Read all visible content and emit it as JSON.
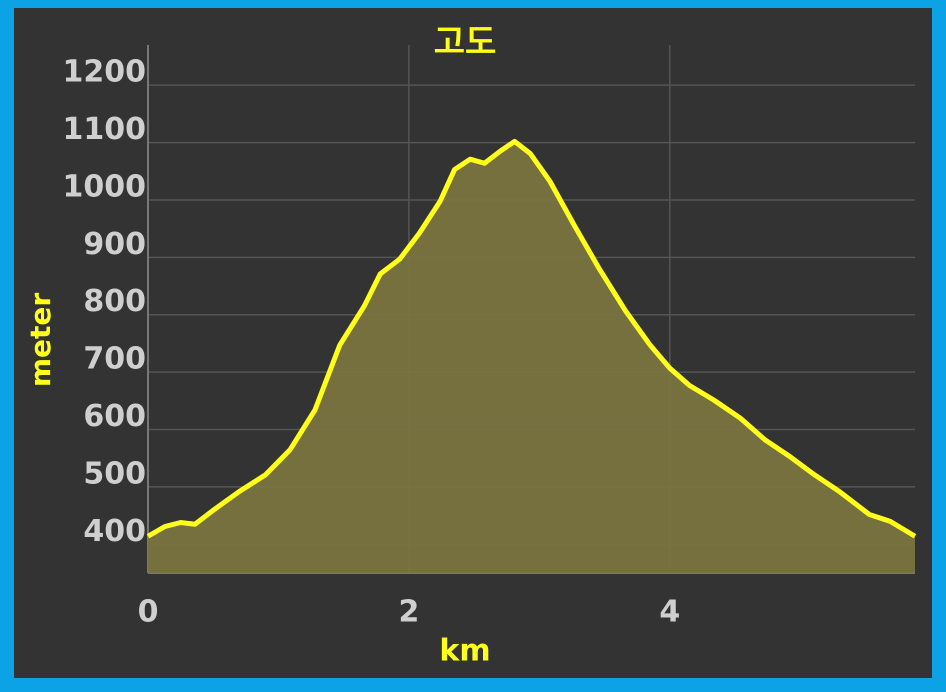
{
  "chart_data": {
    "type": "area",
    "title": "고도",
    "x_label": "km",
    "y_label": "meter",
    "x": [
      0,
      0.13,
      0.25,
      0.36,
      0.51,
      0.7,
      0.9,
      1.09,
      1.28,
      1.47,
      1.66,
      1.78,
      1.93,
      2.08,
      2.24,
      2.35,
      2.47,
      2.58,
      2.7,
      2.81,
      2.93,
      3.08,
      3.27,
      3.46,
      3.66,
      3.85,
      4.0,
      4.15,
      4.34,
      4.54,
      4.73,
      4.92,
      5.11,
      5.3,
      5.53,
      5.69,
      5.88
    ],
    "values": [
      414,
      431,
      438,
      435,
      461,
      492,
      521,
      565,
      634,
      747,
      816,
      871,
      897,
      942,
      998,
      1053,
      1071,
      1064,
      1085,
      1102,
      1081,
      1033,
      955,
      880,
      807,
      747,
      707,
      677,
      651,
      620,
      582,
      553,
      521,
      492,
      452,
      440,
      414
    ],
    "color": "#ffff1a",
    "fill": "#7a7440",
    "xlim": [
      0,
      5.88
    ],
    "ylim": [
      350,
      1270
    ],
    "xticks": [
      0,
      2,
      4
    ],
    "yticks": [
      400,
      500,
      600,
      700,
      800,
      900,
      1000,
      1100,
      1200
    ],
    "grid": true
  }
}
